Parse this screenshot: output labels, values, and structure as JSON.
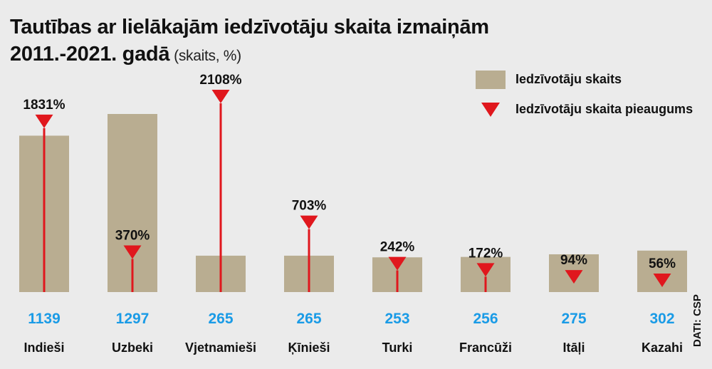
{
  "title": {
    "line1": "Tautības ar lielākajām iedzīvotāju skaita izmaiņām",
    "line2": "2011.-2021. gadā",
    "units": "(skaits, %)"
  },
  "source": "DATI: CSP",
  "colors": {
    "bar": "#b9ad91",
    "marker": "#e0171d",
    "count_label": "#1a9be6",
    "text": "#111111",
    "background": "#ebebeb"
  },
  "chart_data": {
    "type": "bar",
    "title": "Tautības ar lielākajām iedzīvotāju skaita izmaiņām 2011.-2021. gadā",
    "categories": [
      "Indieši",
      "Uzbeki",
      "Vjetnamieši",
      "Ķīnieši",
      "Turki",
      "Francūži",
      "Itāļi",
      "Kazahi"
    ],
    "series": [
      {
        "name": "Iedzīvotāju skaits",
        "values": [
          1139,
          1297,
          265,
          265,
          253,
          256,
          275,
          302
        ],
        "labels": [
          "1139",
          "1297",
          "265",
          "265",
          "253",
          "256",
          "275",
          "302"
        ]
      },
      {
        "name": "Iedzīvotāju skaita pieaugums",
        "values": [
          1831,
          370,
          2108,
          703,
          242,
          172,
          94,
          56
        ],
        "labels": [
          "1831%",
          "370%",
          "2108%",
          "703%",
          "242%",
          "172%",
          "94%",
          "56%"
        ]
      }
    ],
    "legend_position": "top-right",
    "grid": false
  }
}
